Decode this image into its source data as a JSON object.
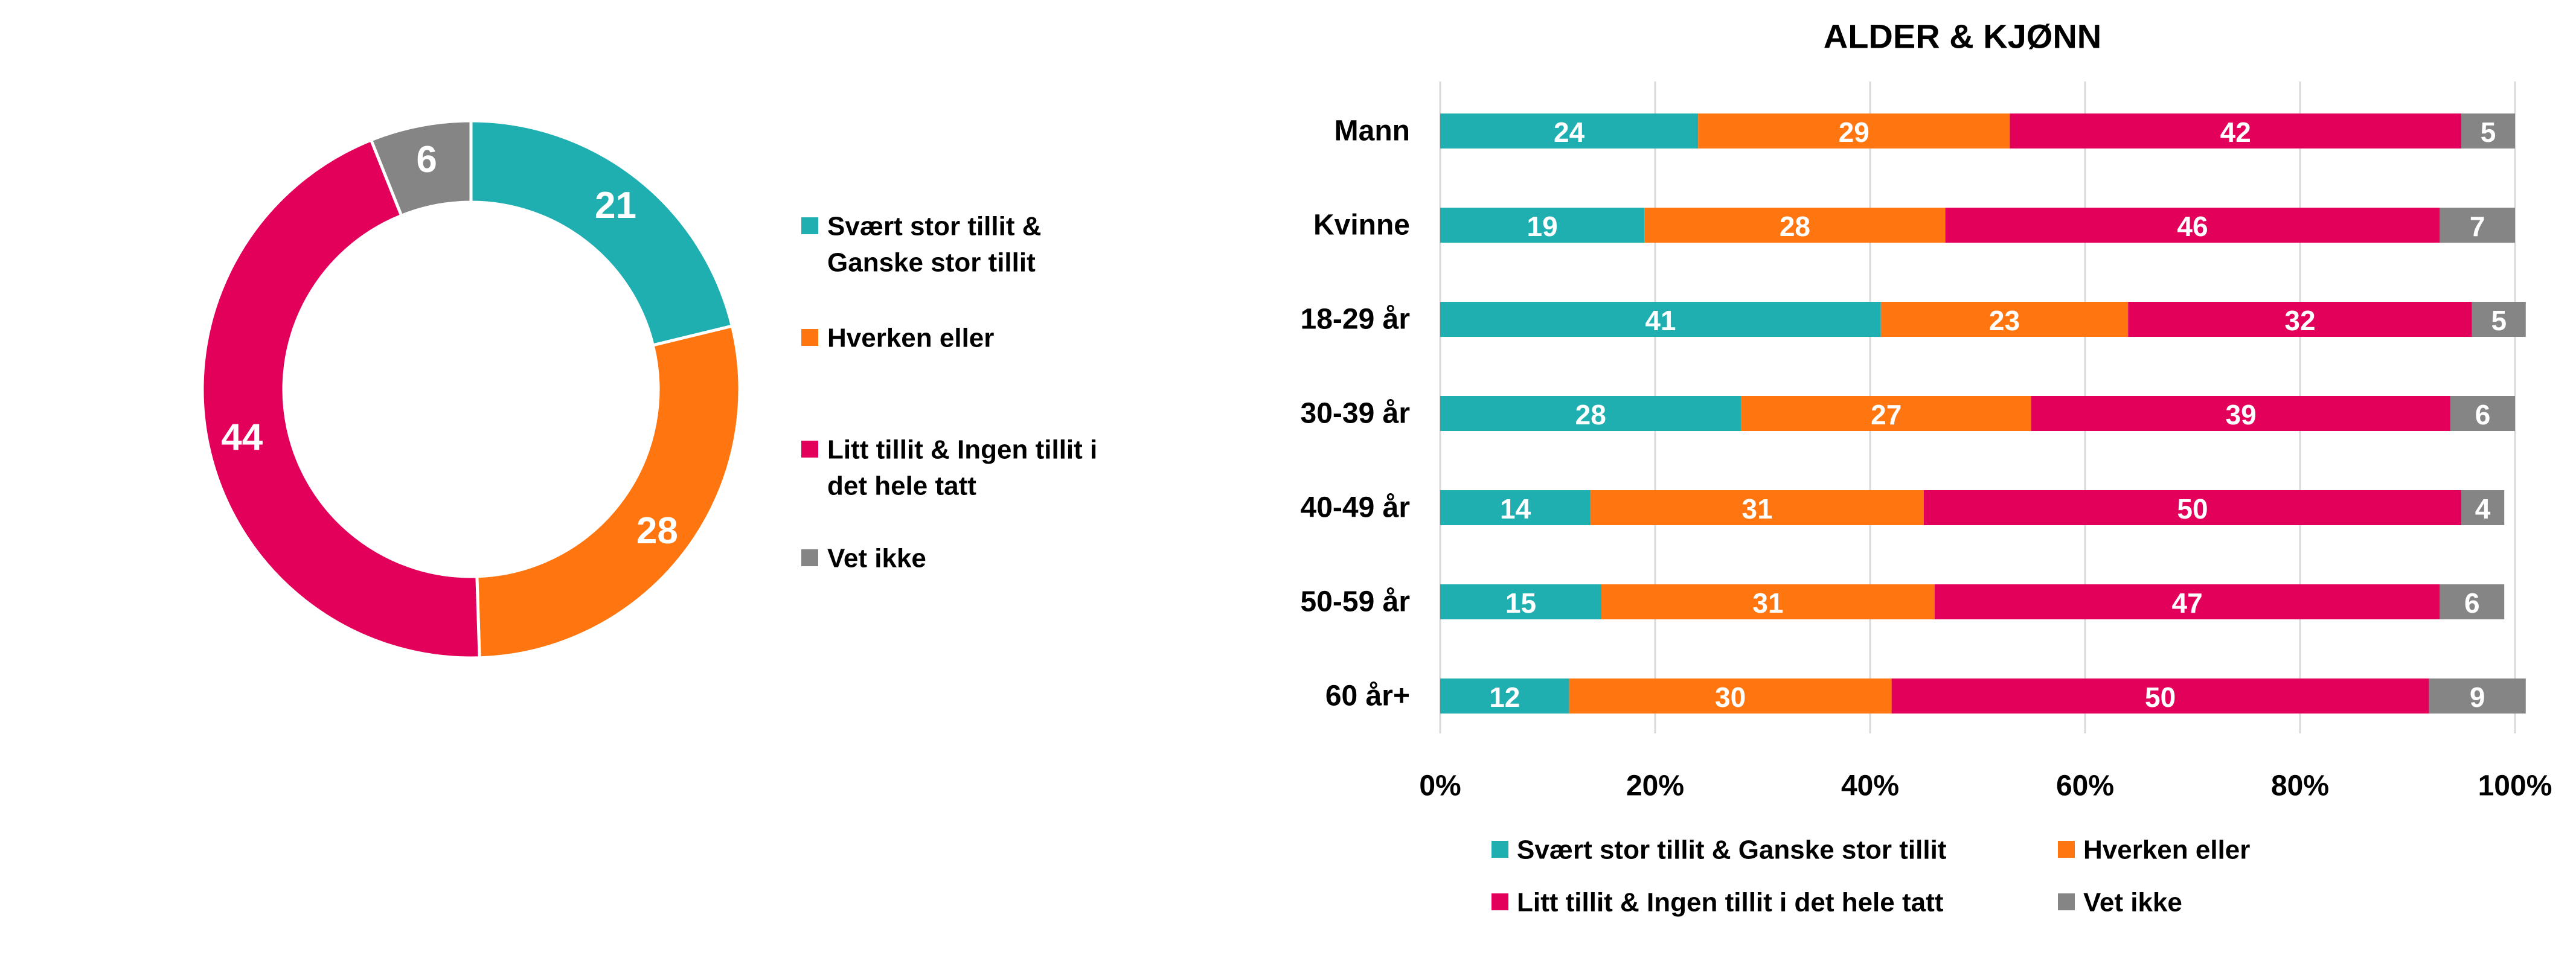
{
  "colors": {
    "teal": "#20AFB0",
    "orange": "#FF7510",
    "crimson": "#E2005A",
    "gray": "#858585",
    "gridline": "#D9D9D9",
    "text": "#000000",
    "label_on_mark": "#FFFFFF"
  },
  "chart_data": [
    {
      "type": "pie",
      "variant": "donut",
      "title": "",
      "categories": [
        "Svært stor tillit & Ganske stor tillit",
        "Hverken eller",
        "Litt tillit & Ingen tillit i det hele tatt",
        "Vet ikke"
      ],
      "values": [
        21,
        28,
        44,
        6
      ],
      "colors": [
        "#20AFB0",
        "#FF7510",
        "#E2005A",
        "#858585"
      ],
      "legend": {
        "placement": "right",
        "entries": [
          {
            "lines": [
              "Svært stor tillit &",
              "Ganske stor tillit"
            ],
            "color": "#20AFB0"
          },
          {
            "lines": [
              "Hverken eller"
            ],
            "color": "#FF7510"
          },
          {
            "lines": [
              "Litt tillit & Ingen tillit i",
              "det hele tatt"
            ],
            "color": "#E2005A"
          },
          {
            "lines": [
              "Vet ikke"
            ],
            "color": "#858585"
          }
        ]
      }
    },
    {
      "type": "bar",
      "orientation": "horizontal",
      "stacked": "percent",
      "title": "ALDER & KJØNN",
      "xlabel": "",
      "ylabel": "",
      "xlim": [
        0,
        100
      ],
      "x_ticks": [
        "0%",
        "20%",
        "40%",
        "60%",
        "80%",
        "100%"
      ],
      "grid": "vertical",
      "categories": [
        "Mann",
        "Kvinne",
        "18-29 år",
        "30-39 år",
        "40-49 år",
        "50-59 år",
        "60 år+"
      ],
      "series": [
        {
          "name": "Svært stor tillit & Ganske stor tillit",
          "color": "#20AFB0",
          "values": [
            24,
            19,
            41,
            28,
            14,
            15,
            12
          ]
        },
        {
          "name": "Hverken eller",
          "color": "#FF7510",
          "values": [
            29,
            28,
            23,
            27,
            31,
            31,
            30
          ]
        },
        {
          "name": "Litt tillit & Ingen tillit i det hele tatt",
          "color": "#E2005A",
          "values": [
            42,
            46,
            32,
            39,
            50,
            47,
            50
          ]
        },
        {
          "name": "Vet ikke",
          "color": "#858585",
          "values": [
            5,
            7,
            5,
            6,
            4,
            6,
            9
          ]
        }
      ],
      "legend": {
        "placement": "bottom",
        "rows": [
          [
            "Svært stor tillit & Ganske stor tillit",
            "Hverken eller"
          ],
          [
            "Litt tillit & Ingen tillit i det hele tatt",
            "Vet ikke"
          ]
        ]
      }
    }
  ]
}
